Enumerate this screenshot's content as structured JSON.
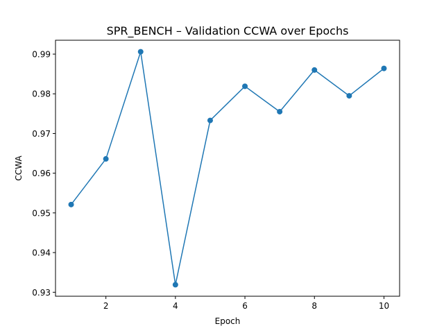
{
  "chart_data": {
    "type": "line",
    "title": "SPR_BENCH – Validation CCWA over Epochs",
    "xlabel": "Epoch",
    "ylabel": "CCWA",
    "x": [
      1,
      2,
      3,
      4,
      5,
      6,
      7,
      8,
      9,
      10
    ],
    "series": [
      {
        "values": [
          0.9521,
          0.9636,
          0.9906,
          0.9319,
          0.9733,
          0.9819,
          0.9755,
          0.986,
          0.9795,
          0.9864
        ],
        "color": "#1f77b4",
        "marker": "circle"
      }
    ],
    "xlim": [
      0.55,
      10.45
    ],
    "ylim": [
      0.929,
      0.9935
    ],
    "x_ticks": [
      2,
      4,
      6,
      8,
      10
    ],
    "y_ticks": [
      0.93,
      0.94,
      0.95,
      0.96,
      0.97,
      0.98,
      0.99
    ],
    "x_tick_labels": [
      "2",
      "4",
      "6",
      "8",
      "10"
    ],
    "y_tick_labels": [
      "0.93",
      "0.94",
      "0.95",
      "0.96",
      "0.97",
      "0.98",
      "0.99"
    ],
    "grid": false,
    "legend": "none"
  }
}
